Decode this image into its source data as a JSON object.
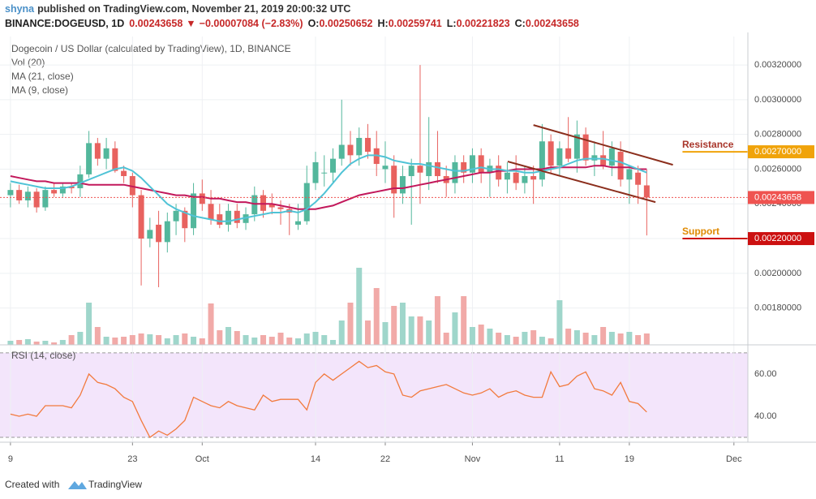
{
  "header": {
    "author": "shyna",
    "published": "published on TradingView.com, November 21, 2019 20:00:32 UTC",
    "symbol": "BINANCE:DOGEUSD, 1D",
    "last": 0.00243658,
    "arrow": "▼",
    "change": "−0.00007084 (−2.83%)",
    "ohlc": [
      {
        "label": "O:",
        "value": 0.00250652
      },
      {
        "label": "H:",
        "value": 0.00259741
      },
      {
        "label": "L:",
        "value": 0.00221823
      },
      {
        "label": "C:",
        "value": 0.00243658
      }
    ]
  },
  "chart_data": {
    "type": "candlestick",
    "title": "Dogecoin / US Dollar (calculated by TradingView), 1D, BINANCE",
    "volume_label": "Vol (20)",
    "up_color": "#53b79c",
    "down_color": "#e8625f",
    "volume_up_color": "#9fd6cb",
    "volume_down_color": "#f1aaa8",
    "grid": true,
    "xlim": [
      -1.2,
      84.6
    ],
    "xticks": [
      {
        "value": 0,
        "label": "9"
      },
      {
        "value": 14,
        "label": "23"
      },
      {
        "value": 22,
        "label": "Oct"
      },
      {
        "value": 35,
        "label": "14"
      },
      {
        "value": 43,
        "label": "22"
      },
      {
        "value": 53,
        "label": "Nov"
      },
      {
        "value": 63,
        "label": "11"
      },
      {
        "value": 71,
        "label": "19"
      },
      {
        "value": 83,
        "label": "Dec"
      }
    ],
    "ylim": [
      0.001588,
      0.003364
    ],
    "yticks": [
      {
        "value": 0.0018,
        "label": "0.00180000"
      },
      {
        "value": 0.002,
        "label": "0.00200000"
      },
      {
        "value": 0.0022,
        "label": "0.00220000"
      },
      {
        "value": 0.0024,
        "label": "0.00240000"
      },
      {
        "value": 0.0026,
        "label": "0.00260000"
      },
      {
        "value": 0.0028,
        "label": "0.00280000"
      },
      {
        "value": 0.003,
        "label": "0.00300000"
      },
      {
        "value": 0.0032,
        "label": "0.00320000"
      }
    ],
    "volume_ylim": [
      0,
      380
    ],
    "open": [
      0.00245,
      0.00248,
      0.00242,
      0.00247,
      0.00238,
      0.00248,
      0.00246,
      0.0025,
      0.00249,
      0.00257,
      0.00275,
      0.00266,
      0.00272,
      0.00259,
      0.00256,
      0.00245,
      0.0022,
      0.00228,
      0.00218,
      0.0023,
      0.00236,
      0.00226,
      0.00246,
      0.0024,
      0.00234,
      0.00228,
      0.00236,
      0.00229,
      0.00234,
      0.00245,
      0.0024,
      0.00238,
      0.00237,
      0.00228,
      0.0023,
      0.00252,
      0.00258,
      0.00258,
      0.00266,
      0.00274,
      0.00268,
      0.00278,
      0.00272,
      0.0026,
      0.00262,
      0.00246,
      0.00256,
      0.00262,
      0.00256,
      0.00264,
      0.00256,
      0.00252,
      0.00264,
      0.00258,
      0.00268,
      0.00258,
      0.00262,
      0.00254,
      0.00258,
      0.00252,
      0.00256,
      0.00254,
      0.00276,
      0.00262,
      0.00272,
      0.00266,
      0.0028,
      0.00265,
      0.00268,
      0.00262,
      0.0027,
      0.00254,
      0.00258,
      0.00250652
    ],
    "high": [
      0.00252,
      0.00251,
      0.0025,
      0.00249,
      0.0025,
      0.00252,
      0.00252,
      0.00252,
      0.00262,
      0.00282,
      0.00278,
      0.00278,
      0.00276,
      0.00262,
      0.00258,
      0.00248,
      0.00232,
      0.00236,
      0.00235,
      0.0024,
      0.00238,
      0.00252,
      0.00254,
      0.00248,
      0.0024,
      0.0024,
      0.0024,
      0.00238,
      0.0025,
      0.00248,
      0.00246,
      0.00242,
      0.0024,
      0.0024,
      0.00262,
      0.0027,
      0.00268,
      0.00272,
      0.003,
      0.00282,
      0.00284,
      0.00286,
      0.00282,
      0.00276,
      0.00268,
      0.00262,
      0.00266,
      0.0032,
      0.0029,
      0.00282,
      0.00262,
      0.00268,
      0.00268,
      0.00272,
      0.00272,
      0.00266,
      0.00268,
      0.00264,
      0.00268,
      0.00262,
      0.00262,
      0.00286,
      0.0028,
      0.00276,
      0.0029,
      0.00288,
      0.00284,
      0.00276,
      0.00282,
      0.00276,
      0.00276,
      0.00262,
      0.00262,
      0.00259741
    ],
    "low": [
      0.00238,
      0.0024,
      0.00238,
      0.00235,
      0.00236,
      0.00244,
      0.00244,
      0.00246,
      0.00244,
      0.00255,
      0.00262,
      0.0026,
      0.00258,
      0.00252,
      0.00238,
      0.00193,
      0.00215,
      0.00192,
      0.00212,
      0.00222,
      0.00218,
      0.00222,
      0.00236,
      0.00228,
      0.00226,
      0.00224,
      0.00226,
      0.00225,
      0.0023,
      0.00232,
      0.00234,
      0.00228,
      0.00222,
      0.00225,
      0.00228,
      0.00248,
      0.0025,
      0.00252,
      0.00262,
      0.00262,
      0.00262,
      0.00266,
      0.00256,
      0.00252,
      0.00232,
      0.0024,
      0.00228,
      0.0024,
      0.00248,
      0.00252,
      0.00244,
      0.00246,
      0.00252,
      0.00252,
      0.00252,
      0.00244,
      0.0025,
      0.00246,
      0.00248,
      0.00246,
      0.0024,
      0.0025,
      0.00258,
      0.00256,
      0.00264,
      0.00258,
      0.00262,
      0.00256,
      0.0026,
      0.00256,
      0.0025,
      0.0024,
      0.0024,
      0.00221823
    ],
    "close": [
      0.00248,
      0.00242,
      0.00247,
      0.00238,
      0.00248,
      0.00246,
      0.0025,
      0.00249,
      0.00257,
      0.00275,
      0.00266,
      0.00272,
      0.00259,
      0.00256,
      0.00245,
      0.0022,
      0.00225,
      0.00218,
      0.0023,
      0.00236,
      0.00226,
      0.00246,
      0.0024,
      0.00231,
      0.00228,
      0.00236,
      0.00229,
      0.00234,
      0.00245,
      0.00236,
      0.00238,
      0.00237,
      0.00235,
      0.0023,
      0.00252,
      0.00264,
      0.00258,
      0.00266,
      0.00274,
      0.00268,
      0.00278,
      0.0027,
      0.00263,
      0.00262,
      0.00246,
      0.00256,
      0.00262,
      0.00258,
      0.00264,
      0.00256,
      0.00252,
      0.00264,
      0.00258,
      0.00268,
      0.00258,
      0.00262,
      0.00254,
      0.00258,
      0.00252,
      0.00256,
      0.00254,
      0.00276,
      0.00262,
      0.00272,
      0.00266,
      0.0028,
      0.00265,
      0.00268,
      0.00262,
      0.00272,
      0.00254,
      0.0026,
      0.00251,
      0.00243658
    ],
    "volume": [
      5,
      6,
      7,
      4,
      5,
      3,
      6,
      12,
      16,
      52,
      22,
      10,
      9,
      10,
      12,
      14,
      13,
      12,
      8,
      12,
      14,
      10,
      8,
      51,
      18,
      22,
      17,
      12,
      9,
      12,
      10,
      15,
      9,
      8,
      14,
      16,
      12,
      6,
      30,
      52,
      95,
      30,
      70,
      28,
      48,
      52,
      35,
      35,
      30,
      60,
      15,
      40,
      60,
      22,
      25,
      20,
      15,
      12,
      10,
      16,
      18,
      10,
      8,
      55,
      20,
      18,
      15,
      12,
      22,
      16,
      14,
      16,
      12,
      14
    ],
    "series": [
      {
        "name": "MA (21, close)",
        "color": "#c2185b",
        "values": [
          0.00256,
          0.00255,
          0.00254,
          0.00253,
          0.00253,
          0.00252,
          0.00252,
          0.00252,
          0.00252,
          0.00251,
          0.00251,
          0.00251,
          0.00251,
          0.00251,
          0.0025,
          0.00249,
          0.00248,
          0.00247,
          0.00246,
          0.00245,
          0.00245,
          0.00244,
          0.00244,
          0.00243,
          0.00243,
          0.00242,
          0.00241,
          0.00241,
          0.0024,
          0.0024,
          0.0024,
          0.00239,
          0.00238,
          0.00237,
          0.00237,
          0.00237,
          0.00238,
          0.00239,
          0.00241,
          0.00243,
          0.00245,
          0.00246,
          0.00247,
          0.00248,
          0.00249,
          0.00249,
          0.0025,
          0.00251,
          0.00252,
          0.00253,
          0.00254,
          0.00255,
          0.00256,
          0.00257,
          0.00258,
          0.00258,
          0.00259,
          0.00259,
          0.0026,
          0.0026,
          0.0026,
          0.0026,
          0.00261,
          0.00261,
          0.00261,
          0.00261,
          0.00261,
          0.00262,
          0.00262,
          0.00261,
          0.00261,
          0.00261,
          0.0026,
          0.0026
        ]
      },
      {
        "name": "MA (9, close)",
        "color": "#4fc3d6",
        "values": [
          0.00253,
          0.00252,
          0.00251,
          0.0025,
          0.00249,
          0.00249,
          0.00249,
          0.0025,
          0.00252,
          0.00254,
          0.00256,
          0.00258,
          0.0026,
          0.00261,
          0.00259,
          0.00255,
          0.0025,
          0.00245,
          0.0024,
          0.00237,
          0.00235,
          0.00233,
          0.00232,
          0.00231,
          0.0023,
          0.0023,
          0.00231,
          0.00232,
          0.00233,
          0.00234,
          0.00235,
          0.00235,
          0.00236,
          0.00235,
          0.00237,
          0.00241,
          0.00246,
          0.00252,
          0.00258,
          0.00263,
          0.00266,
          0.00268,
          0.00268,
          0.00267,
          0.00265,
          0.00264,
          0.00263,
          0.00263,
          0.00262,
          0.00261,
          0.0026,
          0.00259,
          0.00259,
          0.0026,
          0.00261,
          0.0026,
          0.0026,
          0.00259,
          0.00259,
          0.00258,
          0.00258,
          0.00259,
          0.0026,
          0.00261,
          0.00263,
          0.00265,
          0.00266,
          0.00266,
          0.00266,
          0.00265,
          0.00264,
          0.00262,
          0.0026,
          0.00258
        ]
      }
    ],
    "trendlines": [
      {
        "color": "#8b2e1c",
        "x": [
          60.0,
          76.0
        ],
        "values": [
          0.002854,
          0.002625
        ]
      },
      {
        "color": "#8b2e1c",
        "x": [
          57.05,
          74.0
        ],
        "values": [
          0.002644,
          0.00241
        ]
      }
    ],
    "price_lines": [
      {
        "label": "Resistance",
        "value": 0.0027,
        "value_label": "0.00270000",
        "color": "#f0a30a",
        "text_color": "#a8352a",
        "x": [
          77.1,
          84.6
        ]
      },
      {
        "value": 0.00243658,
        "color": "#ef5350",
        "dotted": true,
        "x": [
          -1.2,
          84.6
        ]
      },
      {
        "label": "Support",
        "value": 0.0022,
        "value_label": "0.00220000",
        "color": "#cc1010",
        "text_color": "#e08a00",
        "x": [
          77.1,
          84.6
        ]
      }
    ],
    "rsi": {
      "name": "RSI (14, close)",
      "color": "#f27a3d",
      "band_color": "#f3e5fb",
      "band": [
        30,
        70
      ],
      "ylim": [
        27.7,
        73.8
      ],
      "yticks": [
        {
          "value": 40,
          "label": "40.00"
        },
        {
          "value": 60,
          "label": "60.00"
        }
      ],
      "values": [
        41,
        40,
        41,
        40,
        45,
        45,
        45,
        44,
        50,
        60,
        56,
        55,
        53,
        49,
        47,
        38,
        30,
        33,
        31,
        34,
        38,
        49,
        47,
        45,
        44,
        47,
        45,
        44,
        43,
        50,
        47,
        48,
        48,
        48,
        43,
        56,
        60,
        57,
        60,
        63,
        66,
        63,
        64,
        61,
        60,
        50,
        49,
        52,
        53,
        54,
        55,
        53,
        51,
        50,
        51,
        53,
        49,
        51,
        52,
        50,
        49,
        49,
        61,
        54,
        55,
        59,
        61,
        53,
        52,
        50,
        56,
        47,
        46,
        42
      ]
    }
  },
  "footer": {
    "text": "Created with",
    "brand": "TradingView"
  }
}
